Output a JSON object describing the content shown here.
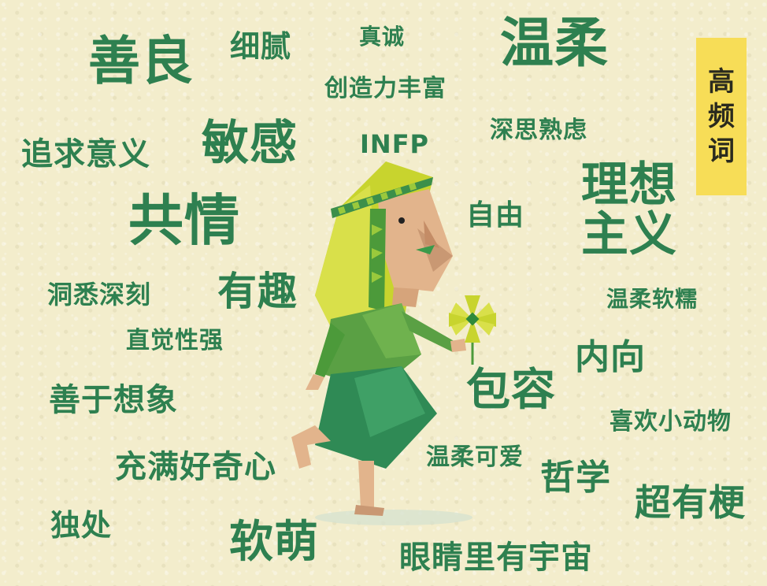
{
  "badge": {
    "chars": [
      "高",
      "频",
      "词"
    ]
  },
  "words": {
    "shanliang": "善良",
    "xini": "细腻",
    "zhencheng": "真诚",
    "wenrou": "温柔",
    "chuangzaoli": "创造力丰富",
    "zhuiqiu": "追求意义",
    "mingan": "敏感",
    "infp": "INFP",
    "shensi": "深思熟虑",
    "lixiang1": "理想",
    "lixiang2": "主义",
    "gongqing": "共情",
    "ziyou": "自由",
    "dongxi": "洞悉深刻",
    "youqu": "有趣",
    "wenrouruannuo": "温柔软糯",
    "zhijue": "直觉性强",
    "neixiang": "内向",
    "baorong": "包容",
    "shanyu": "善于想象",
    "xihuan": "喜欢小动物",
    "chongman": "充满好奇心",
    "wenroukeai": "温柔可爱",
    "zhexue": "哲学",
    "chaoyougeng": "超有梗",
    "duchu": "独处",
    "ruanmeng": "软萌",
    "yanjing": "眼睛里有宇宙"
  },
  "colors": {
    "text": "#2e8050",
    "badge_bg": "#f7dd57",
    "background": "#f3edcc"
  }
}
